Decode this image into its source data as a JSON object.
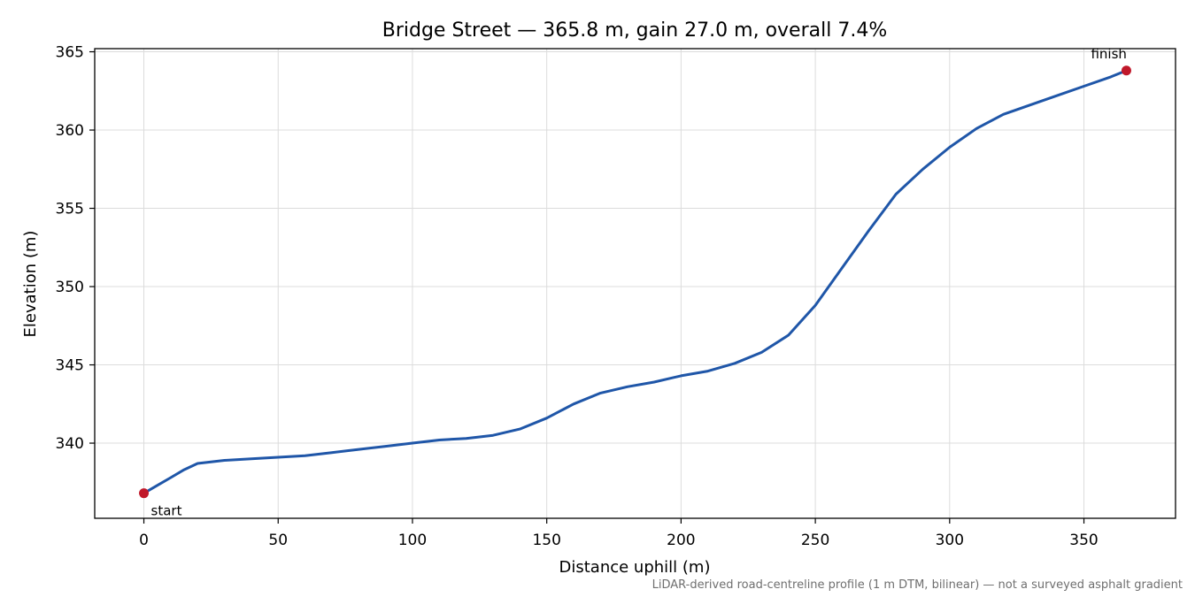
{
  "chart_data": {
    "type": "line",
    "title": "Bridge Street — 365.8 m, gain 27.0 m, overall 7.4%",
    "xlabel": "Distance uphill (m)",
    "ylabel": "Elevation (m)",
    "xlim": [
      -18.3,
      384.1
    ],
    "ylim": [
      335.2,
      365.2
    ],
    "xticks": [
      0,
      50,
      100,
      150,
      200,
      250,
      300,
      350
    ],
    "yticks": [
      340,
      345,
      350,
      355,
      360,
      365
    ],
    "grid": true,
    "footnote": "LiDAR-derived road-centreline profile (1 m DTM, bilinear) — not a surveyed asphalt gradient",
    "colors": {
      "line": "#1f56a8",
      "marker": "#c0182a"
    },
    "series": [
      {
        "x": [
          0,
          5,
          10,
          15,
          20,
          25,
          30,
          40,
          50,
          60,
          70,
          80,
          90,
          100,
          110,
          120,
          130,
          140,
          150,
          160,
          170,
          180,
          190,
          200,
          210,
          220,
          230,
          240,
          250,
          260,
          270,
          280,
          290,
          300,
          310,
          320,
          330,
          340,
          350,
          360,
          365.8
        ],
        "y": [
          336.8,
          337.3,
          337.8,
          338.3,
          338.7,
          338.8,
          338.9,
          339.0,
          339.1,
          339.2,
          339.4,
          339.6,
          339.8,
          340.0,
          340.2,
          340.3,
          340.5,
          340.9,
          341.6,
          342.5,
          343.2,
          343.6,
          343.9,
          344.3,
          344.6,
          345.1,
          345.8,
          346.9,
          348.8,
          351.2,
          353.6,
          355.9,
          357.5,
          358.9,
          360.1,
          361.0,
          361.6,
          362.2,
          362.8,
          363.4,
          363.8
        ]
      }
    ],
    "annotations": [
      {
        "text": "start",
        "x": 0,
        "y": 336.8
      },
      {
        "text": "finish",
        "x": 365.8,
        "y": 363.8
      }
    ]
  }
}
